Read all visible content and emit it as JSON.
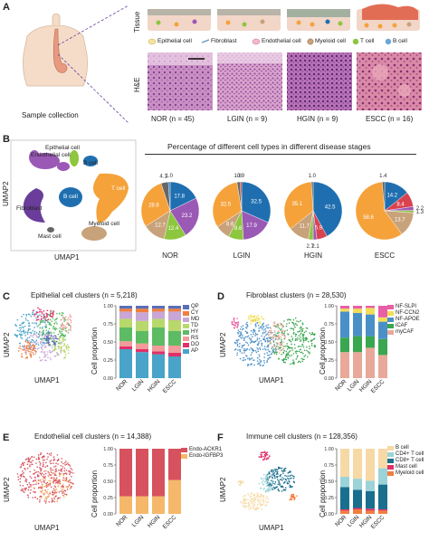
{
  "panels": {
    "A": {
      "label": "A",
      "sample_collection": "Sample collection",
      "tissue_label": "Tissue",
      "he_label": "H&E",
      "legend": [
        "Epithelial cell",
        "Fibroblast",
        "Endothelial cell",
        "Myeloid cell",
        "T cell",
        "B cell"
      ],
      "stages": [
        "NOR (n = 45)",
        "LGIN (n = 9)",
        "HGIN (n = 9)",
        "ESCC (n = 16)"
      ]
    },
    "B": {
      "label": "B",
      "umap_labels": [
        "Epithelial cell",
        "Endothelial cell",
        "B cell",
        "T cell",
        "Fibroblast",
        "Myeloid cell",
        "Mast cell"
      ],
      "umap_x": "UMAP1",
      "umap_y": "UMAP2",
      "title": "Percentage of different cell types in different disease stages"
    },
    "C": {
      "label": "C",
      "title": "Epithelial cell clusters (n = 5,218)",
      "umap_x": "UMAP1",
      "umap_y": "UMAP2",
      "ylabel": "Cell proportion"
    },
    "D": {
      "label": "D",
      "title": "Fibroblast clusters (n = 28,530)",
      "umap_x": "UMAP1",
      "umap_y": "UMAP2",
      "ylabel": "Cell proportion"
    },
    "E": {
      "label": "E",
      "title": "Endothelial cell clusters (n = 14,388)",
      "umap_x": "UMAP1",
      "umap_y": "UMAP2",
      "ylabel": "Cell proportion"
    },
    "F": {
      "label": "F",
      "title": "Immune cell clusters (n = 128,356)",
      "umap_x": "UMAP1",
      "umap_y": "UMAP2",
      "ylabel": "Cell proportion"
    }
  },
  "colors": {
    "epithelial": "#9b59b6",
    "fibroblast": "#2e7db8",
    "endothelial": "#8dc63f",
    "myeloid": "#c8a27a",
    "tcell": "#f5a23a",
    "bcell": "#1f6fb0",
    "mast": "#666666"
  },
  "chart_data": [
    {
      "type": "pie",
      "name": "NOR",
      "values": [
        17.8,
        23.2,
        12.4,
        12.7,
        28.8,
        4.1,
        1.0
      ],
      "labels": [
        "17.8",
        "23.2",
        "12.4",
        "12.7",
        "28.8",
        "4.1",
        "1.0"
      ],
      "colors": [
        "#1f6fb0",
        "#9b59b6",
        "#8dc63f",
        "#c8a27a",
        "#f5a23a",
        "#666666",
        "#2e7db8"
      ]
    },
    {
      "type": "pie",
      "name": "LGIN",
      "values": [
        32.5,
        17.9,
        8.6,
        8.6,
        32.5,
        1.8,
        0.9
      ],
      "labels": [
        "32.5",
        "17.9",
        "8.6",
        "8.6",
        "32.5",
        "1.8",
        "0.9"
      ],
      "colors": [
        "#1f6fb0",
        "#9b59b6",
        "#8dc63f",
        "#c8a27a",
        "#f5a23a",
        "#666666",
        "#c0392b"
      ]
    },
    {
      "type": "pie",
      "name": "HGIN",
      "values": [
        42.5,
        5.9,
        2.1,
        2.7,
        11.7,
        35.1,
        1.0
      ],
      "labels": [
        "42.5",
        "5.9",
        "2.1",
        "2.7",
        "11.7",
        "35.1",
        "1.0"
      ],
      "colors": [
        "#1f6fb0",
        "#d9434f",
        "#9b59b6",
        "#8dc63f",
        "#c8a27a",
        "#f5a23a",
        "#666666"
      ]
    },
    {
      "type": "pie",
      "name": "ESCC",
      "values": [
        14.2,
        8.4,
        2.2,
        1.3,
        13.7,
        58.6,
        1.4
      ],
      "labels": [
        "14.2",
        "8.4",
        "2.2",
        "1.3",
        "13.7",
        "58.6",
        "1.4"
      ],
      "colors": [
        "#1f6fb0",
        "#d9434f",
        "#9b59b6",
        "#8dc63f",
        "#c8a27a",
        "#f5a23a",
        "#666666"
      ]
    },
    {
      "type": "bar",
      "name": "Epithelial stacked proportions",
      "categories": [
        "NOR",
        "LGIN",
        "HGIN",
        "ESCC"
      ],
      "ylim": [
        0,
        1
      ],
      "yticks": [
        "0.00",
        "0.25",
        "0.50",
        "0.75",
        "1.00"
      ],
      "series": [
        {
          "name": "AP",
          "color": "#4aa3c8",
          "values": [
            0.4,
            0.36,
            0.33,
            0.3
          ]
        },
        {
          "name": "DO",
          "color": "#e0306a",
          "values": [
            0.04,
            0.04,
            0.04,
            0.05
          ]
        },
        {
          "name": "RS",
          "color": "#f29b9b",
          "values": [
            0.07,
            0.08,
            0.08,
            0.1
          ]
        },
        {
          "name": "HY",
          "color": "#5dbb63",
          "values": [
            0.19,
            0.17,
            0.25,
            0.2
          ]
        },
        {
          "name": "TD",
          "color": "#b8d86b",
          "values": [
            0.12,
            0.14,
            0.12,
            0.15
          ]
        },
        {
          "name": "MD",
          "color": "#c9a6d6",
          "values": [
            0.1,
            0.12,
            0.1,
            0.12
          ]
        },
        {
          "name": "CY",
          "color": "#f07e3e",
          "values": [
            0.04,
            0.05,
            0.04,
            0.04
          ]
        },
        {
          "name": "QP",
          "color": "#5b6fb5",
          "values": [
            0.04,
            0.04,
            0.04,
            0.04
          ]
        }
      ]
    },
    {
      "type": "bar",
      "name": "Fibroblast stacked proportions",
      "categories": [
        "NOR",
        "LGIN",
        "HGIN",
        "ESCC"
      ],
      "ylim": [
        0,
        1
      ],
      "yticks": [
        "0.00",
        "0.25",
        "0.50",
        "0.75",
        "1.00"
      ],
      "series": [
        {
          "name": "myCAF",
          "color": "#e8a89a",
          "values": [
            0.36,
            0.36,
            0.42,
            0.32
          ]
        },
        {
          "name": "iCAF",
          "color": "#3aa64f",
          "values": [
            0.2,
            0.22,
            0.16,
            0.22
          ]
        },
        {
          "name": "NF-APOE",
          "color": "#4a90c8",
          "values": [
            0.36,
            0.32,
            0.3,
            0.24
          ]
        },
        {
          "name": "NF-CCN2",
          "color": "#f2dd55",
          "values": [
            0.04,
            0.06,
            0.09,
            0.06
          ]
        },
        {
          "name": "NF-SLPI",
          "color": "#e85fa5",
          "values": [
            0.04,
            0.04,
            0.03,
            0.16
          ]
        }
      ]
    },
    {
      "type": "bar",
      "name": "Endothelial stacked proportions",
      "categories": [
        "NOR",
        "LGIN",
        "HGIN",
        "ESCC"
      ],
      "ylim": [
        0,
        1
      ],
      "yticks": [
        "0.00",
        "0.25",
        "0.50",
        "0.75",
        "1.00"
      ],
      "series": [
        {
          "name": "Endo-IGFBP3",
          "color": "#f5b86a",
          "values": [
            0.27,
            0.27,
            0.27,
            0.52
          ]
        },
        {
          "name": "Endo-ACKR1",
          "color": "#d6525e",
          "values": [
            0.73,
            0.73,
            0.73,
            0.48
          ]
        }
      ]
    },
    {
      "type": "bar",
      "name": "Immune stacked proportions",
      "categories": [
        "NOR",
        "LGIN",
        "HGIN",
        "ESCC"
      ],
      "ylim": [
        0,
        1
      ],
      "yticks": [
        "0.00",
        "0.25",
        "0.50",
        "0.75",
        "1.00"
      ],
      "series": [
        {
          "name": "Myeloid cell",
          "color": "#f07e3e",
          "values": [
            0.05,
            0.07,
            0.05,
            0.05
          ]
        },
        {
          "name": "Mast cell",
          "color": "#e0306a",
          "values": [
            0.02,
            0.02,
            0.03,
            0.02
          ]
        },
        {
          "name": "CD8+ T cell",
          "color": "#1a6f8f",
          "values": [
            0.34,
            0.28,
            0.27,
            0.38
          ]
        },
        {
          "name": "CD4+ T cell",
          "color": "#9bd3d8",
          "values": [
            0.16,
            0.17,
            0.16,
            0.25
          ]
        },
        {
          "name": "B cell",
          "color": "#f7d9a6",
          "values": [
            0.43,
            0.46,
            0.49,
            0.3
          ]
        }
      ]
    }
  ],
  "legends": {
    "C": [
      "QP",
      "CY",
      "MD",
      "TD",
      "HY",
      "RS",
      "DO",
      "AP"
    ],
    "C_colors": [
      "#5b6fb5",
      "#f07e3e",
      "#c9a6d6",
      "#b8d86b",
      "#5dbb63",
      "#f29b9b",
      "#e0306a",
      "#4aa3c8"
    ],
    "D": [
      "NF-SLPI",
      "NF-CCN2",
      "NF-APOE",
      "iCAF",
      "myCAF"
    ],
    "D_colors": [
      "#e85fa5",
      "#f2dd55",
      "#4a90c8",
      "#3aa64f",
      "#e8a89a"
    ],
    "E": [
      "Endo-ACKR1",
      "Endo-IGFBP3"
    ],
    "E_colors": [
      "#d6525e",
      "#f5b86a"
    ],
    "F": [
      "B cell",
      "CD4+ T cell",
      "CD8+ T cell",
      "Mast cell",
      "Myeloid cell"
    ],
    "F_colors": [
      "#f7d9a6",
      "#9bd3d8",
      "#1a6f8f",
      "#e0306a",
      "#f07e3e"
    ]
  },
  "stage_names": [
    "NOR",
    "LGIN",
    "HGIN",
    "ESCC"
  ]
}
